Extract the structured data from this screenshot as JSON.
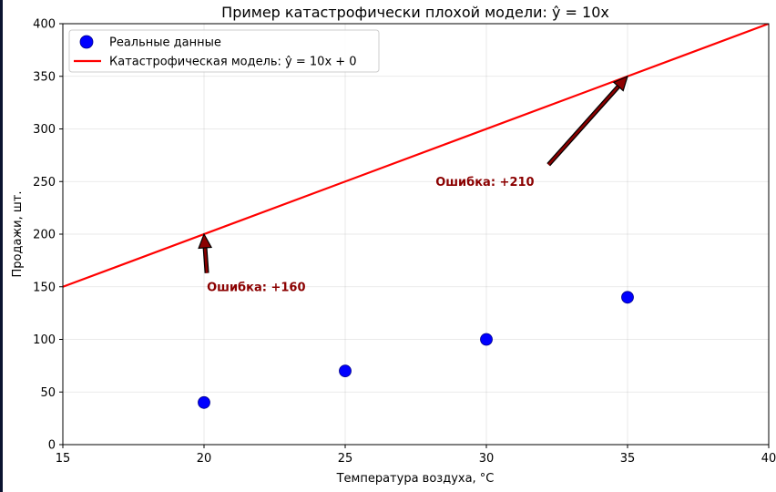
{
  "chart_data": {
    "type": "scatter",
    "title": "Пример катастрофически плохой модели: ŷ = 10x",
    "xlabel": "Температура воздуха, °C",
    "ylabel": "Продажи, шт.",
    "xlim": [
      15,
      40
    ],
    "ylim": [
      0,
      400
    ],
    "xticks": [
      15,
      20,
      25,
      30,
      35,
      40
    ],
    "yticks": [
      0,
      50,
      100,
      150,
      200,
      250,
      300,
      350,
      400
    ],
    "grid": true,
    "legend_position": "top-left",
    "series": [
      {
        "name": "Реальные данные",
        "kind": "scatter",
        "color": "#0000ff",
        "x": [
          20,
          25,
          30,
          35
        ],
        "y": [
          40,
          70,
          100,
          140
        ]
      },
      {
        "name": "Катастрофическая модель: ŷ = 10x + 0",
        "kind": "line",
        "color": "#ff0000",
        "x": [
          15,
          40
        ],
        "y": [
          150,
          400
        ]
      }
    ],
    "annotations": [
      {
        "text": "Ошибка: +160",
        "text_x": 20.1,
        "text_y": 150,
        "arrow_from_x": 20.1,
        "arrow_from_y": 163,
        "arrow_to_x": 20,
        "arrow_to_y": 200,
        "color": "#8b0000"
      },
      {
        "text": "Ошибка: +210",
        "text_x": 28.2,
        "text_y": 250,
        "arrow_from_x": 32.2,
        "arrow_from_y": 266,
        "arrow_to_x": 35,
        "arrow_to_y": 350,
        "color": "#8b0000"
      }
    ]
  }
}
